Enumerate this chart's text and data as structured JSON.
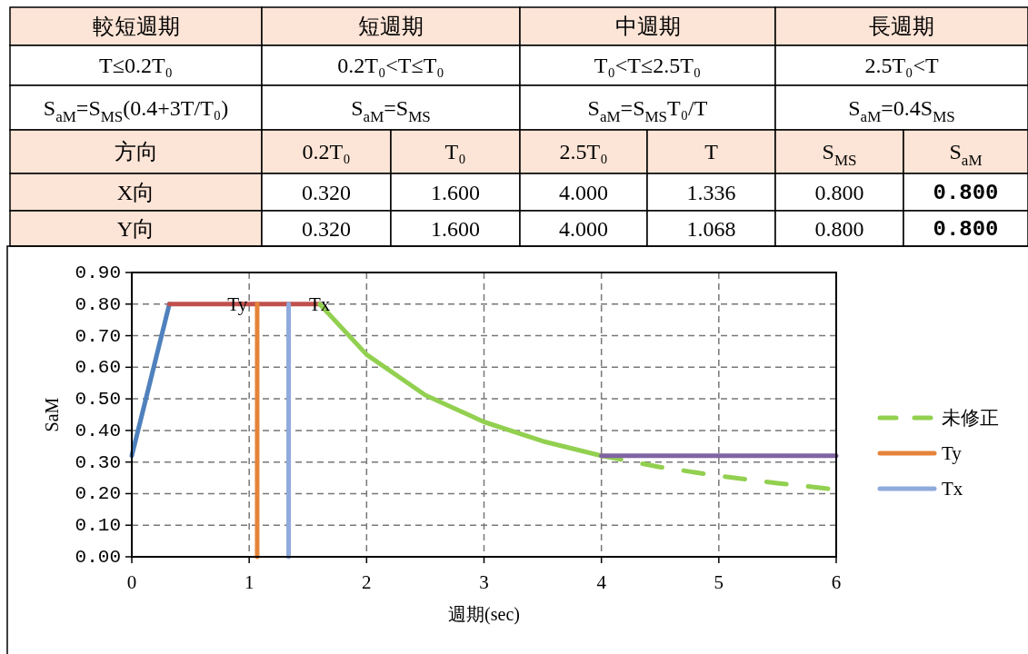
{
  "chart_data": {
    "type": "line",
    "xlabel": "週期(sec)",
    "ylabel": "SaM",
    "xlim": [
      0,
      6
    ],
    "xticks": [
      0,
      1,
      2,
      3,
      4,
      5,
      6
    ],
    "ylim": [
      0,
      0.9
    ],
    "yticks": [
      {
        "value": 0,
        "label": "0.00"
      },
      {
        "value": 0.1,
        "label": "0.10"
      },
      {
        "value": 0.2,
        "label": "0.20"
      },
      {
        "value": 0.3,
        "label": "0.30"
      },
      {
        "value": 0.4,
        "label": "0.40"
      },
      {
        "value": 0.5,
        "label": "0.50"
      },
      {
        "value": 0.6,
        "label": "0.60"
      },
      {
        "value": 0.7,
        "label": "0.70"
      },
      {
        "value": 0.8,
        "label": "0.80"
      },
      {
        "value": 0.9,
        "label": "0.90"
      }
    ],
    "grid": true,
    "legend": "right",
    "series": [
      {
        "color": "#4f81bd",
        "x": [
          0,
          0.32
        ],
        "values": [
          0.32,
          0.8
        ]
      },
      {
        "color": "#c0504d",
        "x": [
          0.32,
          1.6
        ],
        "values": [
          0.8,
          0.8
        ]
      },
      {
        "color": "#92d050",
        "x": [
          1.6,
          2,
          2.5,
          3,
          3.5,
          4
        ],
        "values": [
          0.8,
          0.64,
          0.512,
          0.427,
          0.366,
          0.32
        ]
      },
      {
        "name": "未修正",
        "color": "#92d050",
        "line_style": "dashed",
        "x": [
          4,
          4.5,
          5,
          5.5,
          6
        ],
        "values": [
          0.32,
          0.284,
          0.256,
          0.233,
          0.213
        ]
      },
      {
        "color": "#8064a2",
        "x": [
          4,
          6
        ],
        "values": [
          0.32,
          0.32
        ]
      },
      {
        "name": "Ty",
        "color": "#e5843a",
        "x": [
          1.068,
          1.068
        ],
        "values": [
          0,
          0.8
        ]
      },
      {
        "name": "Tx",
        "color": "#8faadc",
        "x": [
          1.336,
          1.336
        ],
        "values": [
          0,
          0.8
        ]
      }
    ],
    "annotations": [
      {
        "text": "Ty",
        "x": 0.9,
        "y": 0.8
      },
      {
        "text": "Tx",
        "x": 1.6,
        "y": 0.8
      },
      "較短週期",
      "短週期",
      "中週期",
      "長週期",
      "T≤0.2T₀",
      "0.2T₀<T≤T₀",
      "T₀<T≤2.5T₀",
      "2.5T₀<T",
      "S$_{aM}$=S$_{MS}$(0.4+3T/T₀)",
      "S$_{aM}$=S$_{MS}$",
      "S$_{aM}$=S$_{MS}$T₀/T",
      "S$_{aM}$=0.4S$_{MS}$",
      "方向",
      "0.2T₀",
      "T₀",
      "2.5T₀",
      "T",
      "S$_{MS}$",
      "S$_{aM}$",
      "X向",
      "0.320",
      "1.600",
      "4.000",
      "1.336",
      "0.800",
      "0.800",
      "Y向",
      "0.320",
      "1.600",
      "4.000",
      "1.068",
      "0.800",
      "0.800"
    ]
  }
}
